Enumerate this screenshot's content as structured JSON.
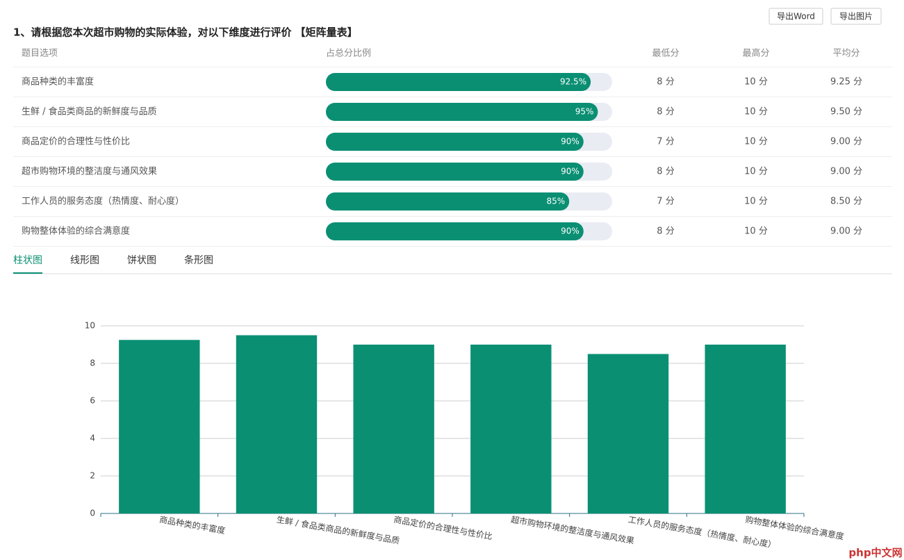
{
  "buttons": [
    "导出Word",
    "导出图片"
  ],
  "question": "1、请根据您本次超市购物的实际体验，对以下维度进行评价 【矩阵量表】",
  "table": {
    "headers": [
      "题目选项",
      "占总分比例",
      "最低分",
      "最高分",
      "平均分"
    ],
    "rows": [
      {
        "option": "商品种类的丰富度",
        "ratio": 92.5,
        "ratio_label": "92.5%",
        "min": "8 分",
        "max": "10 分",
        "avg": "9.25 分"
      },
      {
        "option": "生鲜 / 食品类商品的新鲜度与品质",
        "ratio": 95,
        "ratio_label": "95%",
        "min": "8 分",
        "max": "10 分",
        "avg": "9.50 分"
      },
      {
        "option": "商品定价的合理性与性价比",
        "ratio": 90,
        "ratio_label": "90%",
        "min": "7 分",
        "max": "10 分",
        "avg": "9.00 分"
      },
      {
        "option": "超市购物环境的整洁度与通风效果",
        "ratio": 90,
        "ratio_label": "90%",
        "min": "8 分",
        "max": "10 分",
        "avg": "9.00 分"
      },
      {
        "option": "工作人员的服务态度（热情度、耐心度）",
        "ratio": 85,
        "ratio_label": "85%",
        "min": "7 分",
        "max": "10 分",
        "avg": "8.50 分"
      },
      {
        "option": "购物整体体验的综合满意度",
        "ratio": 90,
        "ratio_label": "90%",
        "min": "8 分",
        "max": "10 分",
        "avg": "9.00 分"
      }
    ]
  },
  "tabs": {
    "items": [
      "柱状图",
      "线形图",
      "饼状图",
      "条形图"
    ],
    "active": 0
  },
  "chart_data": {
    "type": "bar",
    "categories": [
      "商品种类的丰富度",
      "生鲜 / 食品类商品的新鲜度与品质",
      "商品定价的合理性与性价比",
      "超市购物环境的整洁度与通风效果",
      "工作人员的服务态度（热情度、耐心度）",
      "购物整体体验的综合满意度"
    ],
    "values": [
      9.25,
      9.5,
      9,
      9,
      8.5,
      9
    ],
    "color": "#0a8f73",
    "ylim": [
      0,
      10
    ],
    "yticks": [
      0,
      2,
      4,
      6,
      8,
      10
    ],
    "grid": true
  },
  "watermark": "php中文网"
}
